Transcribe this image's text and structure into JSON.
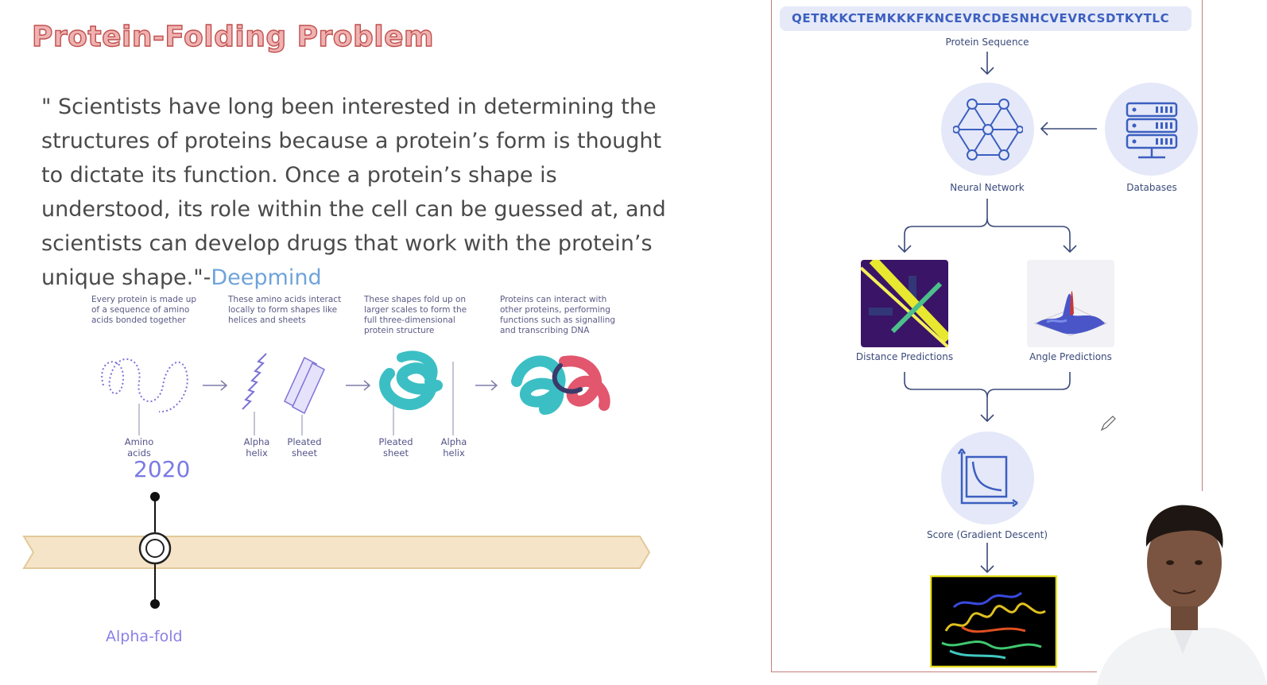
{
  "slide": {
    "title": "Protein-Folding Problem",
    "quote": "\" Scientists have long been interested in determining the structures of proteins because a protein’s form is thought to dictate its function. Once a protein’s shape is understood, its role within the cell can be guessed at, and scientists can develop drugs that work with the protein’s unique shape.\"-",
    "quote_source": "Deepmind"
  },
  "folding_figure": {
    "captions": [
      "Every protein is made up of a sequence of amino acids bonded together",
      "These amino acids interact locally to form shapes like helices and sheets",
      "These shapes fold up on larger scales to form the full three-dimensional protein structure",
      "Proteins can interact with other proteins, performing functions such as signalling and transcribing DNA"
    ],
    "labels": {
      "amino_acids": "Amino acids",
      "alpha_helix_1": "Alpha helix",
      "pleated_sheet_1": "Pleated sheet",
      "pleated_sheet_2": "Pleated sheet",
      "alpha_helix_2": "Alpha helix"
    }
  },
  "timeline": {
    "year": "2020",
    "event": "Alpha-fold"
  },
  "flow": {
    "sequence": "QETRKKCTEMKKKFKNCEVRCDESNHCVEVRCSDTKYTLC",
    "protein_sequence": "Protein Sequence",
    "neural_network": "Neural Network",
    "databases": "Databases",
    "distance_predictions": "Distance Predictions",
    "angle_predictions": "Angle Predictions",
    "score": "Score (Gradient Descent)"
  },
  "colors": {
    "title": "#c0504d",
    "quote_source": "#6fa3da",
    "timeline_band": "#f6e4c8",
    "accent_blue": "#3c5fc0"
  }
}
